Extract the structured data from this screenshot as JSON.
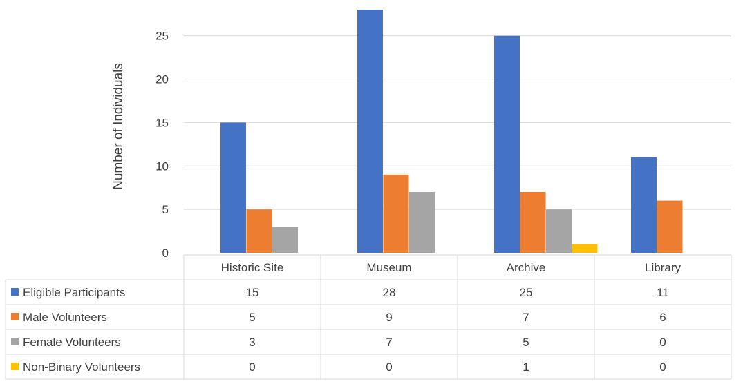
{
  "chart_data": {
    "type": "bar",
    "title": "",
    "xlabel": "",
    "ylabel": "Number of Individuals",
    "ylim": [
      0,
      28
    ],
    "yticks": [
      0,
      5,
      10,
      15,
      20,
      25
    ],
    "grid": true,
    "legend": "data-table-left",
    "categories": [
      "Historic Site",
      "Museum",
      "Archive",
      "Library"
    ],
    "series": [
      {
        "name": "Eligible Participants",
        "color": "#4472C4",
        "values": [
          15,
          28,
          25,
          11
        ]
      },
      {
        "name": "Male Volunteers",
        "color": "#ED7D31",
        "values": [
          5,
          9,
          7,
          6
        ]
      },
      {
        "name": "Female Volunteers",
        "color": "#A5A5A5",
        "values": [
          3,
          7,
          5,
          0
        ]
      },
      {
        "name": "Non-Binary Volunteers",
        "color": "#FFC000",
        "values": [
          0,
          0,
          1,
          0
        ]
      }
    ]
  }
}
